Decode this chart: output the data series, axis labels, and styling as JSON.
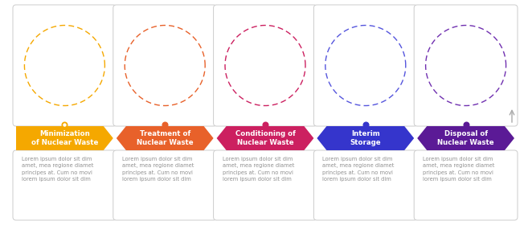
{
  "steps": [
    {
      "title": "Minimization\nof Nuclear Waste",
      "color": "#F5A800",
      "dot_color": "#F5A800",
      "circle_color": "#F5A800"
    },
    {
      "title": "Treatment of\nNuclear Waste",
      "color": "#E8612A",
      "dot_color": "#E8612A",
      "circle_color": "#E8612A"
    },
    {
      "title": "Conditioning of\nNuclear Waste",
      "color": "#CC2060",
      "dot_color": "#CC2060",
      "circle_color": "#CC2060"
    },
    {
      "title": "Interim\nStorage",
      "color": "#3535CC",
      "dot_color": "#3535CC",
      "circle_color": "#5555DD"
    },
    {
      "title": "Disposal of\nNuclear Waste",
      "color": "#5B1A96",
      "dot_color": "#5B1A96",
      "circle_color": "#7030B0"
    }
  ],
  "lorem_text": "Lorem ipsum dolor sit dim\namet, mea regione diamet\nprincipes at. Cum no movi\nlorem ipsum dolor sit dim",
  "background_color": "#ffffff",
  "box_border_color": "#cccccc",
  "timeline_color": "#cccccc",
  "title_fontsize": 6.2,
  "body_fontsize": 4.8
}
